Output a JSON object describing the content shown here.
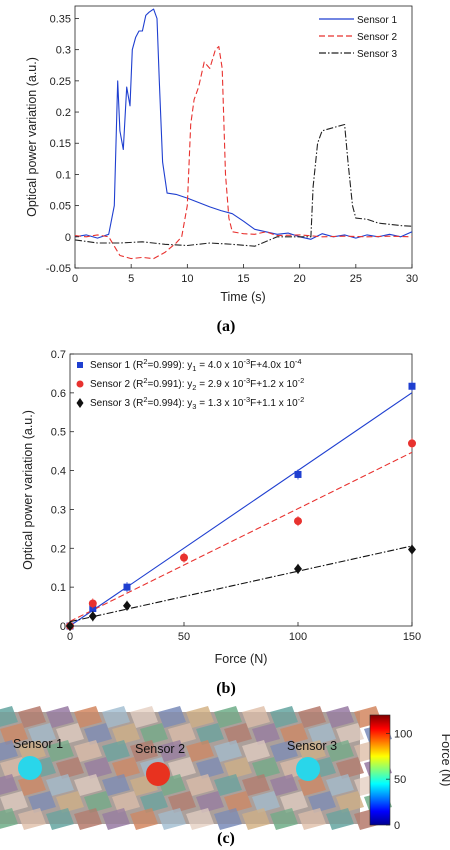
{
  "chart_data": [
    {
      "type": "line",
      "panel": "(a)",
      "xlabel": "Time (s)",
      "ylabel": "Optical power variation (a.u.)",
      "xlim": [
        0,
        30
      ],
      "ylim": [
        -0.05,
        0.37
      ],
      "xticks": [
        "0",
        "5",
        "10",
        "15",
        "20",
        "25",
        "30"
      ],
      "yticks": [
        "-0.05",
        "0",
        "0.05",
        "0.1",
        "0.15",
        "0.2",
        "0.25",
        "0.3",
        "0.35"
      ],
      "legend_position": "top-right",
      "grid": false,
      "series": [
        {
          "name": "Sensor 1",
          "color": "#1f3fd0",
          "style": "solid",
          "x": [
            0,
            1,
            2,
            3,
            3.5,
            3.8,
            4.0,
            4.3,
            4.6,
            4.9,
            5.1,
            5.4,
            5.7,
            6.0,
            6.3,
            6.6,
            7.0,
            7.3,
            7.5,
            7.8,
            8.2,
            9,
            10,
            11,
            12,
            13,
            14,
            15,
            16,
            17,
            18,
            19,
            20,
            21,
            22,
            23,
            24,
            25,
            26,
            27,
            28,
            29,
            30
          ],
          "y": [
            0,
            0.003,
            -0.002,
            0.004,
            0.05,
            0.25,
            0.17,
            0.14,
            0.24,
            0.21,
            0.3,
            0.32,
            0.33,
            0.33,
            0.355,
            0.36,
            0.365,
            0.35,
            0.25,
            0.12,
            0.07,
            0.068,
            0.062,
            0.055,
            0.048,
            0.042,
            0.037,
            0.025,
            0.012,
            0.008,
            0.004,
            0.006,
            0.0,
            -0.004,
            0.005,
            0.0,
            0.003,
            -0.002,
            0.003,
            0.0,
            0.004,
            0.0,
            0.008
          ]
        },
        {
          "name": "Sensor 2",
          "color": "#e8322f",
          "style": "dashed",
          "x": [
            0,
            1,
            2,
            3,
            4,
            5,
            6,
            7,
            8,
            9,
            9.5,
            10,
            10.3,
            10.6,
            11,
            11.5,
            12,
            12.5,
            12.8,
            13.1,
            13.4,
            13.7,
            14,
            15,
            16,
            17,
            18,
            20,
            22,
            24,
            26,
            28,
            30
          ],
          "y": [
            0.002,
            0.0,
            0.003,
            0.0,
            -0.03,
            -0.035,
            -0.033,
            -0.035,
            -0.025,
            -0.01,
            0.0,
            0.05,
            0.18,
            0.22,
            0.24,
            0.28,
            0.27,
            0.3,
            0.305,
            0.27,
            0.1,
            0.03,
            0.008,
            0.005,
            0.004,
            0.008,
            0.002,
            0.003,
            0.0,
            0.001,
            0.0,
            0.001,
            0.0
          ]
        },
        {
          "name": "Sensor 3",
          "color": "#222222",
          "style": "dashdot",
          "x": [
            0,
            2,
            4,
            6,
            8,
            10,
            12,
            14,
            16,
            18,
            20,
            21,
            21.2,
            21.6,
            22,
            23,
            24,
            24.3,
            24.7,
            25,
            26,
            27,
            28,
            29,
            30
          ],
          "y": [
            -0.005,
            -0.01,
            -0.01,
            -0.008,
            -0.012,
            -0.014,
            -0.01,
            -0.012,
            -0.015,
            0.0,
            0.0,
            0.0,
            0.08,
            0.15,
            0.17,
            0.175,
            0.18,
            0.12,
            0.05,
            0.03,
            0.028,
            0.022,
            0.02,
            0.018,
            0.017
          ]
        }
      ]
    },
    {
      "type": "scatter",
      "panel": "(b)",
      "xlabel": "Force (N)",
      "ylabel": "Optical power variation (a.u.)",
      "xlim": [
        0,
        150
      ],
      "ylim": [
        0,
        0.7
      ],
      "xticks": [
        "0",
        "50",
        "100",
        "150"
      ],
      "yticks": [
        "0",
        "0.1",
        "0.2",
        "0.3",
        "0.4",
        "0.5",
        "0.6",
        "0.7"
      ],
      "legend_position": "top-left",
      "grid": false,
      "series": [
        {
          "name": "Sensor 1",
          "legend_prefix": "Sensor 1 (R²=0.999): y₁ = 4.0 x 10⁻³F+4.0x 10⁻⁴",
          "color": "#1f3fd0",
          "marker": "square",
          "fit": "solid",
          "x": [
            0,
            10,
            25,
            100,
            150
          ],
          "y": [
            0.0,
            0.045,
            0.1,
            0.39,
            0.617
          ],
          "fit_slope": 0.004,
          "fit_intercept": 0.0004
        },
        {
          "name": "Sensor 2",
          "legend_prefix": "Sensor 2 (R²=0.991): y₂ = 2.9 x 10⁻³F+1.2x 10⁻²",
          "color": "#e8322f",
          "marker": "circle",
          "fit": "dashed",
          "x": [
            0,
            10,
            50,
            100,
            150
          ],
          "y": [
            0.0,
            0.058,
            0.176,
            0.27,
            0.47
          ],
          "fit_slope": 0.0029,
          "fit_intercept": 0.012
        },
        {
          "name": "Sensor 3",
          "legend_prefix": "Sensor 3 (R²=0.994): y₃ = 1.3 x 10⁻³F+1.1x 10⁻²",
          "color": "#111111",
          "marker": "diamond",
          "fit": "dashdot",
          "x": [
            0,
            10,
            25,
            100,
            150
          ],
          "y": [
            0.0,
            0.025,
            0.052,
            0.147,
            0.197
          ],
          "fit_slope": 0.0013,
          "fit_intercept": 0.011
        }
      ]
    },
    {
      "type": "heatmap",
      "panel": "(c)",
      "colorbar_label": "Force (N)",
      "colorbar_ticks": [
        "0",
        "50",
        "100"
      ],
      "colorbar_range": [
        0,
        120
      ],
      "sensors": [
        {
          "name": "Sensor 1",
          "color": "#29d6ea"
        },
        {
          "name": "Sensor 2",
          "color": "#e8321f"
        },
        {
          "name": "Sensor 3",
          "color": "#29d6ea"
        }
      ]
    }
  ],
  "captions": {
    "a": "(a)",
    "b": "(b)",
    "c": "(c)"
  },
  "legend_a": [
    "Sensor 1",
    "Sensor 2",
    "Sensor 3"
  ],
  "legend_b": [
    {
      "pre": "Sensor 1 (R",
      "sup1": "2",
      "mid": "=0.999): y",
      "sub": "1",
      "eq": " = 4.0 x 10",
      "sup2": "-3",
      "tail": "F+4.0x 10",
      "sup3": "-4"
    },
    {
      "pre": "Sensor 2 (R",
      "sup1": "2",
      "mid": "=0.991): y",
      "sub": "2",
      "eq": " = 2.9 x 10",
      "sup2": "-3",
      "tail": "F+1.2 x 10",
      "sup3": "-2"
    },
    {
      "pre": "Sensor 3 (R",
      "sup1": "2",
      "mid": "=0.994): y",
      "sub": "3",
      "eq": " = 1.3 x 10",
      "sup2": "-3",
      "tail": "F+1.1 x 10",
      "sup3": "-2"
    }
  ]
}
